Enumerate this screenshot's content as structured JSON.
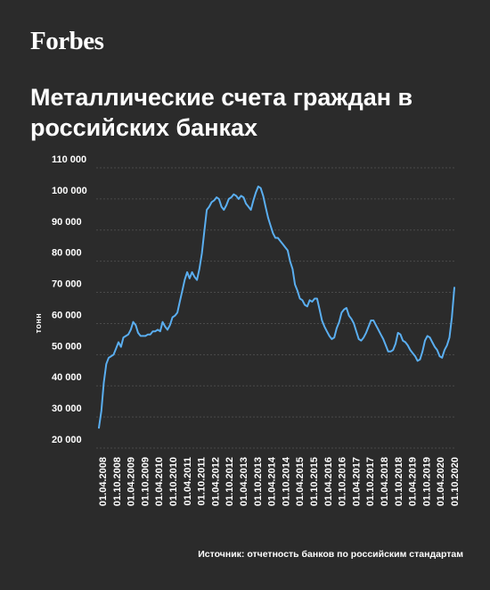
{
  "brand": {
    "logo_text": "Forbes"
  },
  "source_text": "Источник: отчетность банков по российским стандартам",
  "colors": {
    "background": "#2b2b2b",
    "line": "#5aaef0",
    "text": "#ffffff",
    "grid": "#4a4a4a"
  },
  "chart_data": {
    "type": "line",
    "title": "Металлические счета граждан в российских банках",
    "xlabel": "",
    "ylabel": "тонн",
    "ylim": [
      20000,
      110000
    ],
    "yticks": [
      20000,
      30000,
      40000,
      50000,
      60000,
      70000,
      80000,
      90000,
      100000,
      110000
    ],
    "ytick_labels": [
      "20 000",
      "30 000",
      "40 000",
      "50 000",
      "60 000",
      "70 000",
      "80 000",
      "90 000",
      "100 000",
      "110 000"
    ],
    "xtick_labels": [
      "01.04.2008",
      "01.10.2008",
      "01.04.2009",
      "01.10.2009",
      "01.04.2010",
      "01.10.2010",
      "01.04.2011",
      "01.10.2011",
      "01.04.2012",
      "01.10.2012",
      "01.04.2013",
      "01.10.2013",
      "01.04.2014",
      "01.10.2014",
      "01.04.2015",
      "01.10.2015",
      "01.04.2016",
      "01.10.2016",
      "01.04.2017",
      "01.10.2017",
      "01.04.2018",
      "01.10.2018",
      "01.04.2019",
      "01.10.2019",
      "01.04.2020",
      "01.10.2020"
    ],
    "grid": true,
    "series": [
      {
        "values": [
          26500,
          32000,
          41000,
          47000,
          49000,
          49500,
          50000,
          52000,
          54000,
          52500,
          55500,
          56000,
          56500,
          58000,
          60500,
          59500,
          57000,
          56000,
          56000,
          56000,
          56500,
          56500,
          57500,
          57500,
          58000,
          57500,
          60500,
          59000,
          58000,
          59500,
          62000,
          62500,
          63500,
          67000,
          70500,
          74000,
          76500,
          74500,
          76500,
          75000,
          74000,
          77500,
          82500,
          89500,
          96500,
          97500,
          99000,
          99500,
          100500,
          100000,
          97500,
          96500,
          98000,
          100000,
          100500,
          101500,
          101000,
          100000,
          101000,
          100500,
          98500,
          97500,
          96500,
          99500,
          102000,
          104000,
          103500,
          101000,
          97500,
          94000,
          91500,
          89000,
          87500,
          87500,
          86500,
          85500,
          84500,
          83500,
          80000,
          77500,
          72500,
          70500,
          68000,
          67500,
          66000,
          65500,
          67500,
          67000,
          68000,
          68000,
          64500,
          61000,
          59000,
          57500,
          56000,
          55000,
          55500,
          58500,
          60500,
          63500,
          64500,
          65000,
          62500,
          61500,
          60000,
          57500,
          55000,
          54500,
          55500,
          57000,
          59000,
          61000,
          61000,
          59500,
          58000,
          56500,
          55000,
          53000,
          51000,
          51000,
          51500,
          53500,
          57000,
          56500,
          54500,
          54000,
          53000,
          51500,
          50500,
          49500,
          48000,
          48500,
          51000,
          54500,
          56000,
          55500,
          54000,
          52500,
          51500,
          49500,
          49000,
          51500,
          53000,
          55500,
          62000,
          71500
        ]
      }
    ]
  }
}
